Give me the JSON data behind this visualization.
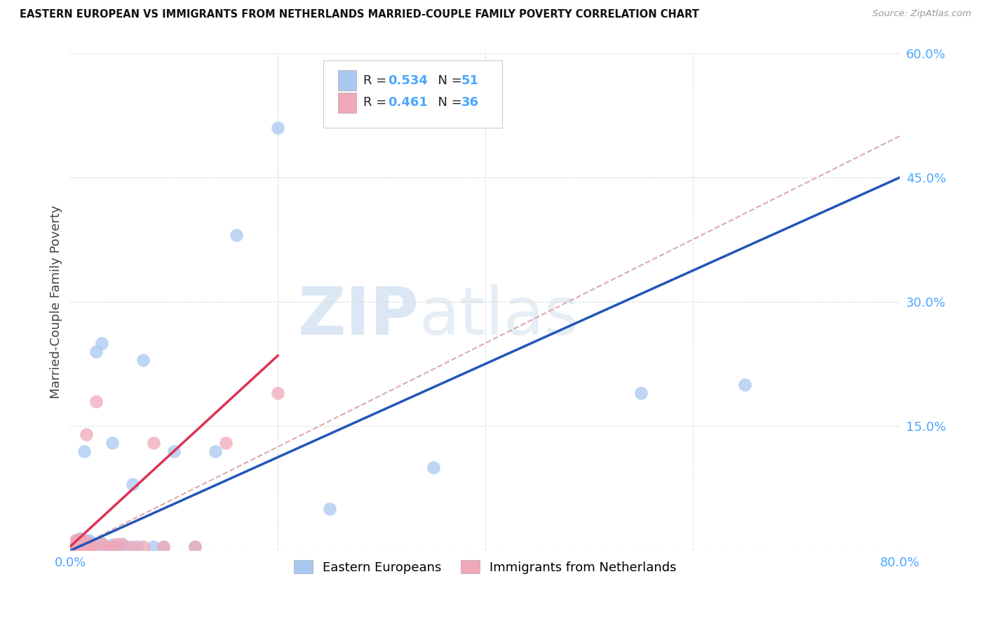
{
  "title": "EASTERN EUROPEAN VS IMMIGRANTS FROM NETHERLANDS MARRIED-COUPLE FAMILY POVERTY CORRELATION CHART",
  "source": "Source: ZipAtlas.com",
  "ylabel": "Married-Couple Family Poverty",
  "watermark_zip": "ZIP",
  "watermark_atlas": "atlas",
  "R_blue": 0.534,
  "N_blue": 51,
  "R_pink": 0.461,
  "N_pink": 36,
  "blue_color": "#a8c8f0",
  "pink_color": "#f0a8b8",
  "blue_line_color": "#2255bb",
  "pink_line_color": "#dd3355",
  "dash_color": "#ddaaaa",
  "xmin": 0.0,
  "xmax": 0.8,
  "ymin": 0.0,
  "ymax": 0.6,
  "x_ticks": [
    0.0,
    0.2,
    0.4,
    0.6,
    0.8
  ],
  "y_ticks": [
    0.0,
    0.15,
    0.3,
    0.45,
    0.6
  ],
  "tick_color": "#4da6ff",
  "blue_x": [
    0.005,
    0.005,
    0.005,
    0.005,
    0.005,
    0.007,
    0.007,
    0.007,
    0.007,
    0.008,
    0.008,
    0.008,
    0.01,
    0.01,
    0.01,
    0.012,
    0.012,
    0.013,
    0.014,
    0.015,
    0.015,
    0.016,
    0.017,
    0.018,
    0.02,
    0.02,
    0.02,
    0.025,
    0.025,
    0.03,
    0.03,
    0.035,
    0.04,
    0.04,
    0.045,
    0.05,
    0.055,
    0.06,
    0.065,
    0.07,
    0.08,
    0.09,
    0.1,
    0.12,
    0.14,
    0.16,
    0.2,
    0.25,
    0.35,
    0.55,
    0.65
  ],
  "blue_y": [
    0.005,
    0.007,
    0.009,
    0.01,
    0.012,
    0.005,
    0.008,
    0.01,
    0.012,
    0.005,
    0.008,
    0.012,
    0.007,
    0.01,
    0.015,
    0.005,
    0.008,
    0.12,
    0.005,
    0.007,
    0.01,
    0.005,
    0.008,
    0.012,
    0.005,
    0.008,
    0.01,
    0.005,
    0.24,
    0.008,
    0.25,
    0.005,
    0.007,
    0.13,
    0.005,
    0.008,
    0.005,
    0.08,
    0.005,
    0.23,
    0.005,
    0.005,
    0.12,
    0.005,
    0.12,
    0.38,
    0.51,
    0.05,
    0.1,
    0.19,
    0.2
  ],
  "pink_x": [
    0.004,
    0.004,
    0.005,
    0.005,
    0.006,
    0.007,
    0.007,
    0.008,
    0.008,
    0.009,
    0.01,
    0.01,
    0.011,
    0.012,
    0.013,
    0.014,
    0.015,
    0.015,
    0.016,
    0.017,
    0.018,
    0.02,
    0.022,
    0.025,
    0.03,
    0.035,
    0.04,
    0.045,
    0.05,
    0.06,
    0.07,
    0.08,
    0.09,
    0.12,
    0.15,
    0.2
  ],
  "pink_y": [
    0.005,
    0.01,
    0.005,
    0.012,
    0.007,
    0.005,
    0.013,
    0.006,
    0.01,
    0.005,
    0.007,
    0.013,
    0.005,
    0.008,
    0.005,
    0.012,
    0.007,
    0.14,
    0.005,
    0.009,
    0.005,
    0.007,
    0.005,
    0.18,
    0.009,
    0.005,
    0.005,
    0.008,
    0.007,
    0.005,
    0.005,
    0.13,
    0.005,
    0.005,
    0.13,
    0.19
  ],
  "blue_line_x0": 0.0,
  "blue_line_x1": 0.8,
  "blue_line_y0": 0.0,
  "blue_line_y1": 0.45,
  "pink_line_x0": 0.0,
  "pink_line_x1": 0.2,
  "pink_line_y0": 0.005,
  "pink_line_y1": 0.235,
  "dash_line_x0": 0.0,
  "dash_line_x1": 0.8,
  "dash_line_y0": 0.0,
  "dash_line_y1": 0.5
}
